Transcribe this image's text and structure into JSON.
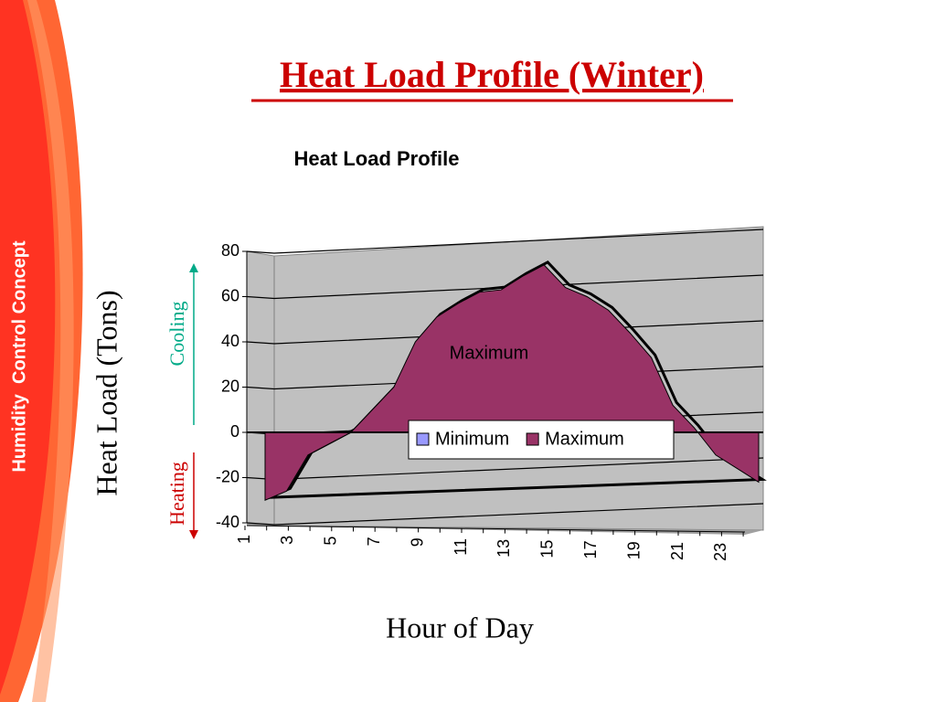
{
  "header": {
    "title": "Heat Load Profile (Winter)",
    "side_text": "Humidity  Control Concept"
  },
  "chart_data": {
    "type": "area",
    "title": "Heat Load Profile",
    "y_label": "Heat Load (Tons)",
    "x_label": "Hour of Day",
    "annotations": {
      "cooling": "Cooling",
      "heating": "Heating",
      "area_label": "Maximum"
    },
    "categories": [
      "1",
      null,
      "3",
      null,
      "5",
      null,
      "7",
      null,
      "9",
      null,
      "11",
      null,
      "13",
      null,
      "15",
      null,
      "17",
      null,
      "19",
      null,
      "21",
      null,
      "23",
      null
    ],
    "series": [
      {
        "name": "Minimum",
        "color": "#9999ff",
        "values": [
          null,
          null,
          null,
          null,
          null,
          null,
          null,
          null,
          null,
          null,
          null,
          null,
          null,
          null,
          null,
          null,
          null,
          null,
          null,
          null,
          null,
          null,
          null,
          null
        ]
      },
      {
        "name": "Maximum",
        "color": "#993366",
        "values": [
          -30,
          -26,
          -10,
          -5,
          0,
          10,
          20,
          40,
          51,
          57,
          62,
          63,
          69,
          74,
          64,
          60,
          54,
          44,
          33,
          12,
          2,
          -10,
          -16,
          -22
        ]
      }
    ],
    "ylim": [
      -40,
      80
    ],
    "yticks": [
      -40,
      -20,
      0,
      20,
      40,
      60,
      80
    ],
    "grid": true
  }
}
